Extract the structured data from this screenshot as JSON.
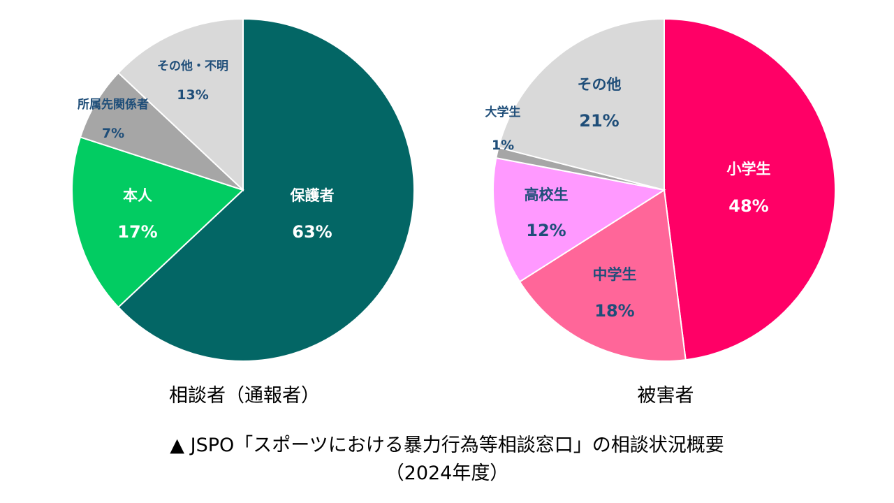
{
  "chart_data": [
    {
      "type": "pie",
      "title": "相談者（通報者）",
      "slices": [
        {
          "label": "保護者",
          "value": 63,
          "value_label": "63%",
          "color": "#036665",
          "text_color": "#ffffff"
        },
        {
          "label": "本人",
          "value": 17,
          "value_label": "17%",
          "color": "#02CC62",
          "text_color": "#ffffff"
        },
        {
          "label": "所属先関係者",
          "value": 7,
          "value_label": "7%",
          "color": "#A6A6A6",
          "text_color": "#1F4E79"
        },
        {
          "label": "その他・不明",
          "value": 13,
          "value_label": "13%",
          "color": "#D9D9D9",
          "text_color": "#1F4E79"
        }
      ]
    },
    {
      "type": "pie",
      "title": "被害者",
      "slices": [
        {
          "label": "小学生",
          "value": 48,
          "value_label": "48%",
          "color": "#FF0066",
          "text_color": "#ffffff"
        },
        {
          "label": "中学生",
          "value": 18,
          "value_label": "18%",
          "color": "#FF6699",
          "text_color": "#1F4E79"
        },
        {
          "label": "高校生",
          "value": 12,
          "value_label": "12%",
          "color": "#FF99FF",
          "text_color": "#1F4E79"
        },
        {
          "label": "大学生",
          "value": 1,
          "value_label": "1%",
          "color": "#A6A6A6",
          "text_color": "#1F4E79"
        },
        {
          "label": "その他",
          "value": 21,
          "value_label": "21%",
          "color": "#D9D9D9",
          "text_color": "#1F4E79"
        }
      ]
    }
  ],
  "caption": {
    "line1": "▲ JSPO「スポーツにおける暴力行為等相談窓口」の相談状況概要",
    "line2": "（2024年度）"
  }
}
